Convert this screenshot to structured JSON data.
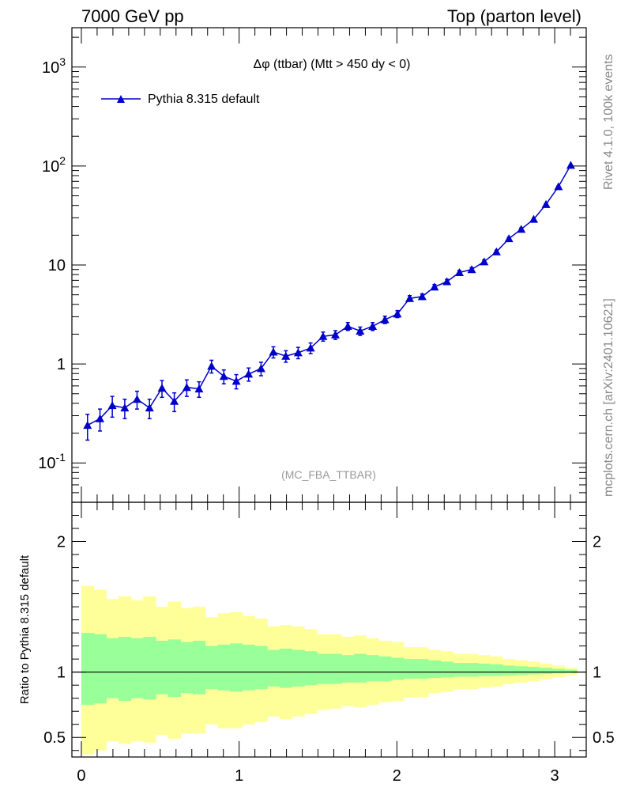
{
  "header": {
    "left": "7000 GeV pp",
    "right": "Top (parton level)"
  },
  "side_labels": {
    "top": "Rivet 4.1.0,  100k events",
    "bottom": "mcplots.cern.ch [arXiv:2401.10621]"
  },
  "chart_data": {
    "type": "line",
    "title": "Δφ (ttbar) (Mtt > 450 dy < 0)",
    "watermark": "(MC_FBA_TTBAR)",
    "legend": {
      "label": "Pythia 8.315 default",
      "position": "top-left"
    },
    "colors": {
      "series": "#0000cc",
      "yellow_band": "#ffff99",
      "green_band": "#99ff99"
    },
    "main": {
      "yscale": "log",
      "ylim": [
        0.04,
        2500
      ],
      "xlim": [
        -0.06,
        3.2
      ],
      "ytick_labels": [
        "10^-1",
        "1",
        "10",
        "10^2",
        "10^3"
      ],
      "series": [
        {
          "name": "Pythia 8.315 default",
          "x": [
            0.039,
            0.118,
            0.196,
            0.275,
            0.353,
            0.432,
            0.511,
            0.589,
            0.668,
            0.746,
            0.825,
            0.903,
            0.982,
            1.06,
            1.139,
            1.217,
            1.296,
            1.374,
            1.453,
            1.532,
            1.61,
            1.689,
            1.767,
            1.846,
            1.924,
            2.003,
            2.081,
            2.16,
            2.238,
            2.317,
            2.396,
            2.474,
            2.553,
            2.631,
            2.71,
            2.788,
            2.867,
            2.945,
            3.024,
            3.102
          ],
          "y": [
            0.24,
            0.28,
            0.38,
            0.36,
            0.44,
            0.36,
            0.57,
            0.42,
            0.58,
            0.56,
            0.95,
            0.75,
            0.67,
            0.79,
            0.9,
            1.32,
            1.2,
            1.3,
            1.45,
            1.9,
            1.97,
            2.4,
            2.15,
            2.4,
            2.8,
            3.2,
            4.6,
            4.8,
            6.0,
            6.8,
            8.4,
            9.0,
            10.8,
            13.6,
            18.5,
            23.0,
            29.0,
            41.0,
            62.0,
            102.0
          ],
          "yerr": [
            0.07,
            0.07,
            0.09,
            0.08,
            0.09,
            0.08,
            0.11,
            0.09,
            0.11,
            0.1,
            0.14,
            0.12,
            0.11,
            0.12,
            0.14,
            0.17,
            0.16,
            0.17,
            0.18,
            0.2,
            0.2,
            0.22,
            0.21,
            0.22,
            0.24,
            0.26,
            0.3,
            0.3,
            0.34,
            0.36,
            0.4,
            0.42,
            0.46,
            0.52,
            0.6,
            0.68,
            0.76,
            0.9,
            1.1,
            1.5
          ]
        }
      ]
    },
    "ratio": {
      "ylabel": "Ratio to Pythia 8.315 default",
      "ylim": [
        0.35,
        2.3
      ],
      "xlim": [
        -0.06,
        3.2
      ],
      "ytick_labels": [
        "0.5",
        "1",
        "2"
      ],
      "xtick_labels": [
        "0",
        "1",
        "2",
        "3"
      ],
      "bin_edges": [
        0.0,
        0.0785,
        0.157,
        0.2355,
        0.314,
        0.3925,
        0.471,
        0.5495,
        0.628,
        0.7065,
        0.785,
        0.8635,
        0.942,
        1.0205,
        1.099,
        1.1775,
        1.256,
        1.3345,
        1.413,
        1.4915,
        1.57,
        1.6485,
        1.727,
        1.8055,
        1.884,
        1.9625,
        2.041,
        2.1195,
        2.198,
        2.2765,
        2.355,
        2.4335,
        2.512,
        2.5905,
        2.669,
        2.7475,
        2.826,
        2.9045,
        2.983,
        3.0615,
        3.14
      ],
      "yellow_up": [
        1.66,
        1.63,
        1.56,
        1.58,
        1.55,
        1.58,
        1.5,
        1.54,
        1.49,
        1.5,
        1.42,
        1.45,
        1.46,
        1.43,
        1.41,
        1.35,
        1.36,
        1.35,
        1.33,
        1.29,
        1.29,
        1.27,
        1.28,
        1.26,
        1.24,
        1.23,
        1.19,
        1.19,
        1.17,
        1.16,
        1.14,
        1.14,
        1.13,
        1.12,
        1.1,
        1.09,
        1.08,
        1.065,
        1.05,
        1.035
      ],
      "yellow_down": [
        0.37,
        0.4,
        0.47,
        0.45,
        0.47,
        0.46,
        0.52,
        0.49,
        0.53,
        0.53,
        0.6,
        0.57,
        0.57,
        0.6,
        0.62,
        0.66,
        0.64,
        0.66,
        0.68,
        0.71,
        0.72,
        0.74,
        0.73,
        0.75,
        0.77,
        0.78,
        0.81,
        0.81,
        0.84,
        0.85,
        0.87,
        0.87,
        0.88,
        0.89,
        0.91,
        0.92,
        0.93,
        0.945,
        0.96,
        0.975
      ],
      "green_up": [
        1.3,
        1.29,
        1.26,
        1.27,
        1.26,
        1.27,
        1.24,
        1.25,
        1.23,
        1.24,
        1.2,
        1.21,
        1.22,
        1.21,
        1.2,
        1.17,
        1.18,
        1.17,
        1.16,
        1.14,
        1.14,
        1.13,
        1.14,
        1.13,
        1.12,
        1.11,
        1.1,
        1.1,
        1.09,
        1.08,
        1.07,
        1.07,
        1.065,
        1.06,
        1.05,
        1.045,
        1.04,
        1.033,
        1.025,
        1.018
      ],
      "green_down": [
        0.75,
        0.76,
        0.8,
        0.78,
        0.8,
        0.79,
        0.83,
        0.81,
        0.84,
        0.83,
        0.87,
        0.86,
        0.85,
        0.86,
        0.87,
        0.89,
        0.88,
        0.89,
        0.9,
        0.91,
        0.91,
        0.92,
        0.92,
        0.93,
        0.93,
        0.94,
        0.95,
        0.95,
        0.955,
        0.96,
        0.965,
        0.965,
        0.97,
        0.97,
        0.975,
        0.978,
        0.982,
        0.986,
        0.99,
        0.993
      ]
    }
  }
}
